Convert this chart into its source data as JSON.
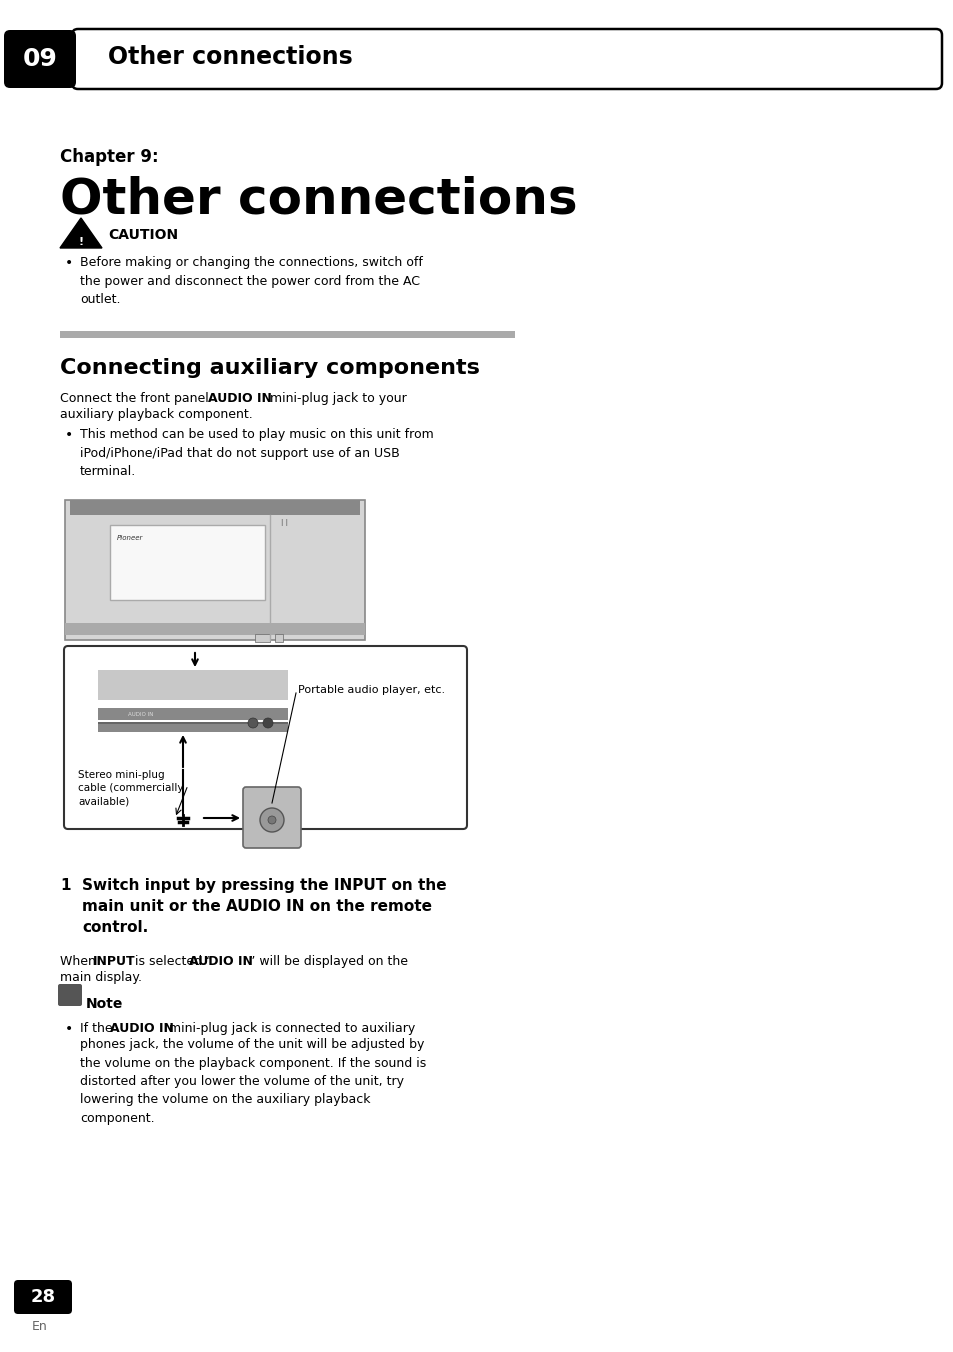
{
  "bg_color": "#ffffff",
  "header_text": "09",
  "header_title": "Other connections",
  "chapter_label": "Chapter 9:",
  "main_title": "Other connections",
  "caution_title": "CAUTION",
  "caution_bullet": "Before making or changing the connections, switch off\nthe power and disconnect the power cord from the AC\noutlet.",
  "section_title": "Connecting auxiliary components",
  "bullet1": "This method can be used to play music on this unit from\niPod/iPhone/iPad that do not support use of an USB\nterminal.",
  "step1_text": "Switch input by pressing the INPUT on the\nmain unit or the AUDIO IN on the remote\ncontrol.",
  "note_text_rest": "phones jack, the volume of the unit will be adjusted by\nthe volume on the playback component. If the sound is\ndistorted after you lower the volume of the unit, try\nlowering the volume on the auxiliary playback\ncomponent.",
  "page_num": "28",
  "page_lang": "En"
}
